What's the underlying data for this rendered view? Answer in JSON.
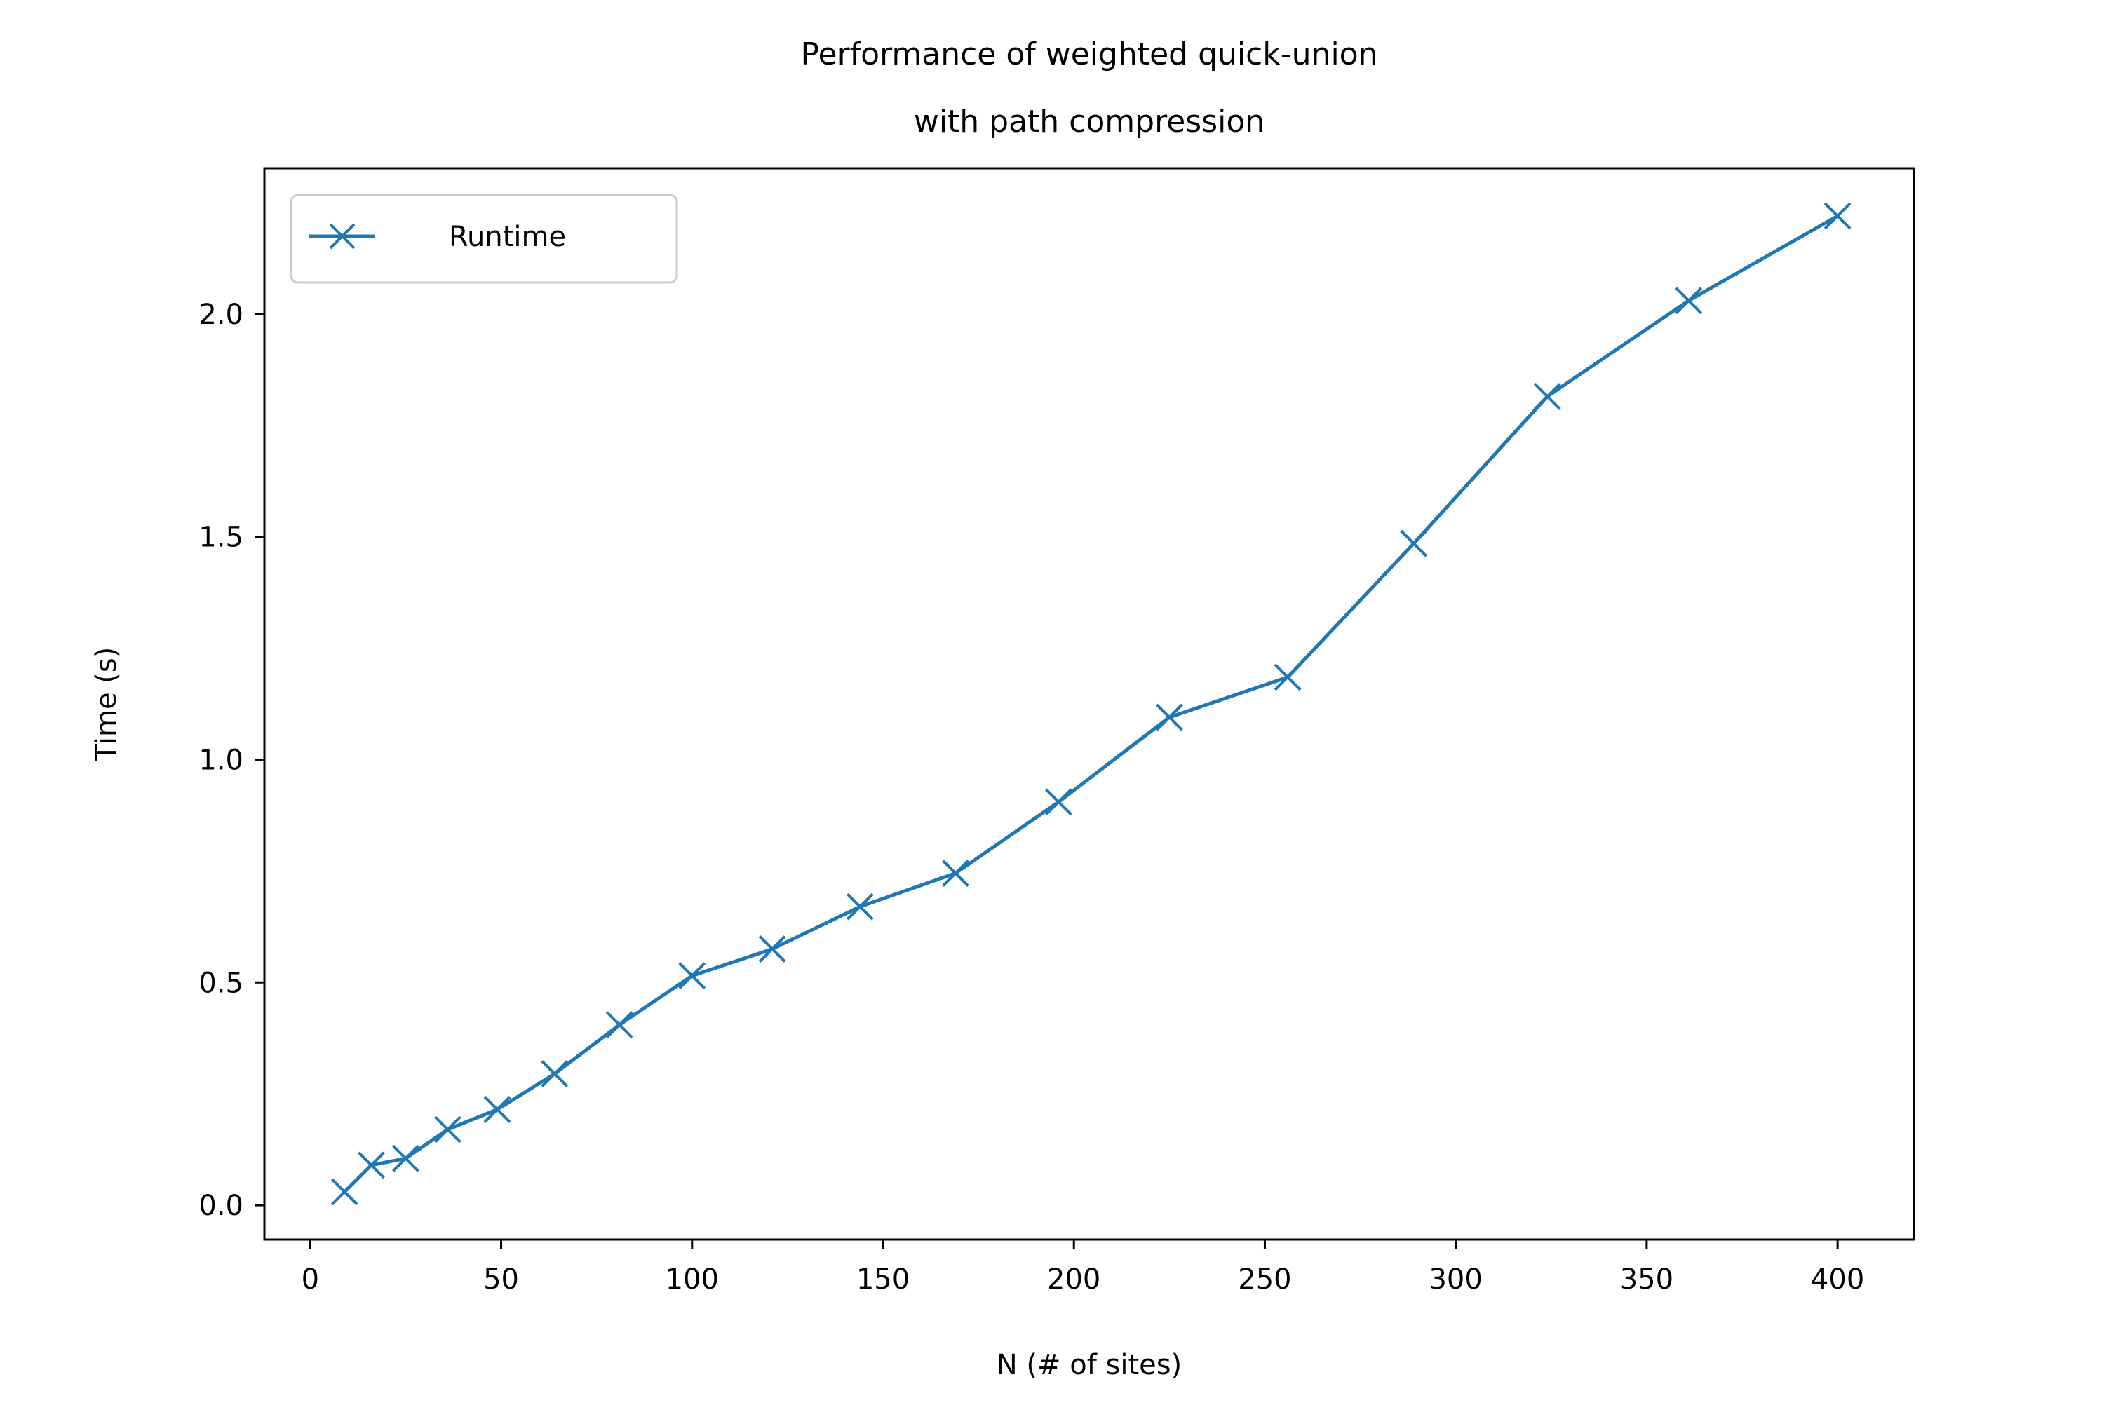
{
  "chart_data": {
    "type": "line",
    "title": [
      "Performance of weighted quick-union",
      "with path compression"
    ],
    "xlabel": "N (# of sites)",
    "ylabel": "Time (s)",
    "xlim": [
      -12,
      420
    ],
    "ylim": [
      -0.077,
      2.327
    ],
    "xticks": [
      0,
      50,
      100,
      150,
      200,
      250,
      300,
      350,
      400
    ],
    "xtick_labels": [
      "0",
      "50",
      "100",
      "150",
      "200",
      "250",
      "300",
      "350",
      "400"
    ],
    "yticks": [
      0.0,
      0.5,
      1.0,
      1.5,
      2.0
    ],
    "ytick_labels": [
      "0.0",
      "0.5",
      "1.0",
      "1.5",
      "2.0"
    ],
    "grid": false,
    "legend_position": "top-left",
    "series": [
      {
        "name": "Runtime",
        "color": "#1f77b4",
        "marker": "x",
        "x": [
          9,
          16,
          25,
          36,
          49,
          64,
          81,
          100,
          121,
          144,
          169,
          196,
          225,
          256,
          289,
          324,
          361,
          400
        ],
        "y": [
          0.03,
          0.09,
          0.105,
          0.17,
          0.215,
          0.295,
          0.405,
          0.515,
          0.575,
          0.67,
          0.745,
          0.905,
          1.095,
          1.185,
          1.485,
          1.815,
          2.03,
          2.22
        ]
      }
    ]
  }
}
